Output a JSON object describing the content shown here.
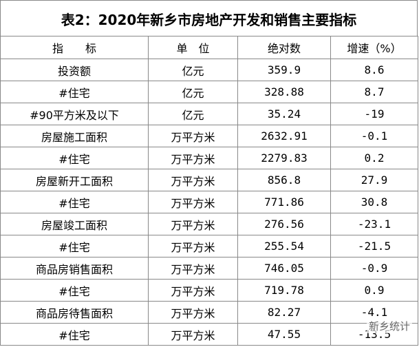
{
  "title": "表2：2020年新乡市房地产开发和销售主要指标",
  "table": {
    "header": [
      "指　　标",
      "单　位",
      "绝对数",
      "增速（%）"
    ],
    "rows": [
      [
        "投资额",
        "亿元",
        "359.9",
        "8.6"
      ],
      [
        "#住宅",
        "亿元",
        "328.88",
        "8.7"
      ],
      [
        "#90平方米及以下",
        "亿元",
        "35.24",
        "-19"
      ],
      [
        "房屋施工面积",
        "万平方米",
        "2632.91",
        "-0.1"
      ],
      [
        "#住宅",
        "万平方米",
        "2279.83",
        "0.2"
      ],
      [
        "房屋新开工面积",
        "万平方米",
        "856.8",
        "27.9"
      ],
      [
        "#住宅",
        "万平方米",
        "771.86",
        "30.8"
      ],
      [
        "房屋竣工面积",
        "万平方米",
        "276.56",
        "-23.1"
      ],
      [
        "#住宅",
        "万平方米",
        "255.54",
        "-21.5"
      ],
      [
        "商品房销售面积",
        "万平方米",
        "746.05",
        "-0.9"
      ],
      [
        "#住宅",
        "万平方米",
        "719.78",
        "0.9"
      ],
      [
        "商品房待售面积",
        "万平方米",
        "82.27",
        "-4.1"
      ],
      [
        "#住宅",
        "万平方米",
        "47.55",
        "-13.5"
      ]
    ]
  },
  "watermark": "新乡统计"
}
